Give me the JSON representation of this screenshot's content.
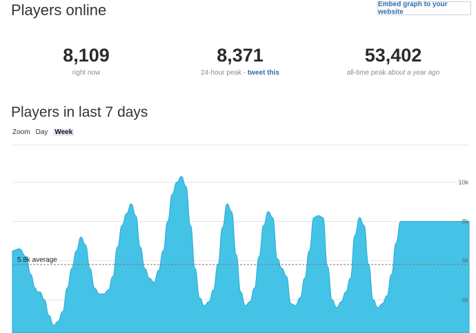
{
  "header": {
    "title": "Players online",
    "embed_label": "Embed graph to your website"
  },
  "stats": {
    "current": {
      "value": "8,109",
      "label": "right now"
    },
    "peak24": {
      "value": "8,371",
      "label_prefix": "24-hour peak - ",
      "link": "tweet this"
    },
    "alltime": {
      "value": "53,402",
      "label_prefix": "all-time peak ",
      "label_italic": "about a year ago"
    }
  },
  "chart_section": {
    "title": "Players in last 7 days",
    "zoom_label": "Zoom",
    "zoom_options": [
      "Day",
      "Week"
    ],
    "zoom_selected": "Week"
  },
  "chart_data": {
    "type": "area",
    "color": "#44c3e6",
    "average": {
      "value": 5.8,
      "label": "5.8k average"
    },
    "ylim": [
      2.3,
      11.9
    ],
    "yticks": [
      {
        "v": 10,
        "label": "10k"
      },
      {
        "v": 8,
        "label": "8k"
      },
      {
        "v": 6,
        "label": "6k"
      },
      {
        "v": 4,
        "label": "4k"
      }
    ],
    "x": [
      0,
      1.5,
      3,
      4,
      5,
      5.5,
      6,
      7,
      8,
      9,
      10,
      11,
      12,
      13,
      14,
      15,
      16,
      17,
      18,
      19,
      20,
      21,
      22,
      23,
      24,
      25,
      26,
      27,
      28,
      29,
      30,
      31,
      32,
      33,
      34,
      35,
      36,
      37,
      38,
      39,
      40,
      41,
      42,
      43,
      44,
      45,
      46,
      47,
      48,
      49,
      50,
      51,
      52,
      53,
      54,
      55,
      56,
      57,
      58,
      59,
      60,
      61,
      62,
      63,
      64,
      65,
      66,
      67,
      68,
      69,
      70,
      71,
      72,
      73,
      74,
      75,
      76,
      77,
      78,
      79,
      80,
      81,
      82,
      83,
      84,
      85,
      86,
      87,
      88,
      89,
      90,
      91,
      92,
      93,
      94,
      95,
      96,
      97,
      98,
      99,
      100
    ],
    "values": [
      6.5,
      6.6,
      6.2,
      5.3,
      4.6,
      4.4,
      4.4,
      4.0,
      3.2,
      2.7,
      2.9,
      3.4,
      4.6,
      5.6,
      6.5,
      7.2,
      6.8,
      5.6,
      4.6,
      4.3,
      4.3,
      4.5,
      5.2,
      6.7,
      7.8,
      8.4,
      8.9,
      8.3,
      6.7,
      5.6,
      5.1,
      4.9,
      5.5,
      6.5,
      8.0,
      9.4,
      10.0,
      10.3,
      9.8,
      7.8,
      5.6,
      4.1,
      3.7,
      3.9,
      4.5,
      5.8,
      7.7,
      8.9,
      8.5,
      6.3,
      4.4,
      3.7,
      3.9,
      4.6,
      6.2,
      7.8,
      8.5,
      8.2,
      6.1,
      5.6,
      5.2,
      3.8,
      3.7,
      4.1,
      5.1,
      6.5,
      8.2,
      8.3,
      8.2,
      5.7,
      4.0,
      3.6,
      3.9,
      4.4,
      5.1,
      7.3,
      8.2,
      7.8,
      5.8,
      4.0,
      3.6,
      3.8,
      4.2,
      5.3,
      6.9,
      8.0,
      8.0,
      8.0,
      8.0,
      8.0,
      8.0,
      8.0,
      8.0,
      8.0,
      8.0,
      8.0,
      8.0,
      8.0,
      8.0,
      8.0,
      8.0
    ]
  }
}
